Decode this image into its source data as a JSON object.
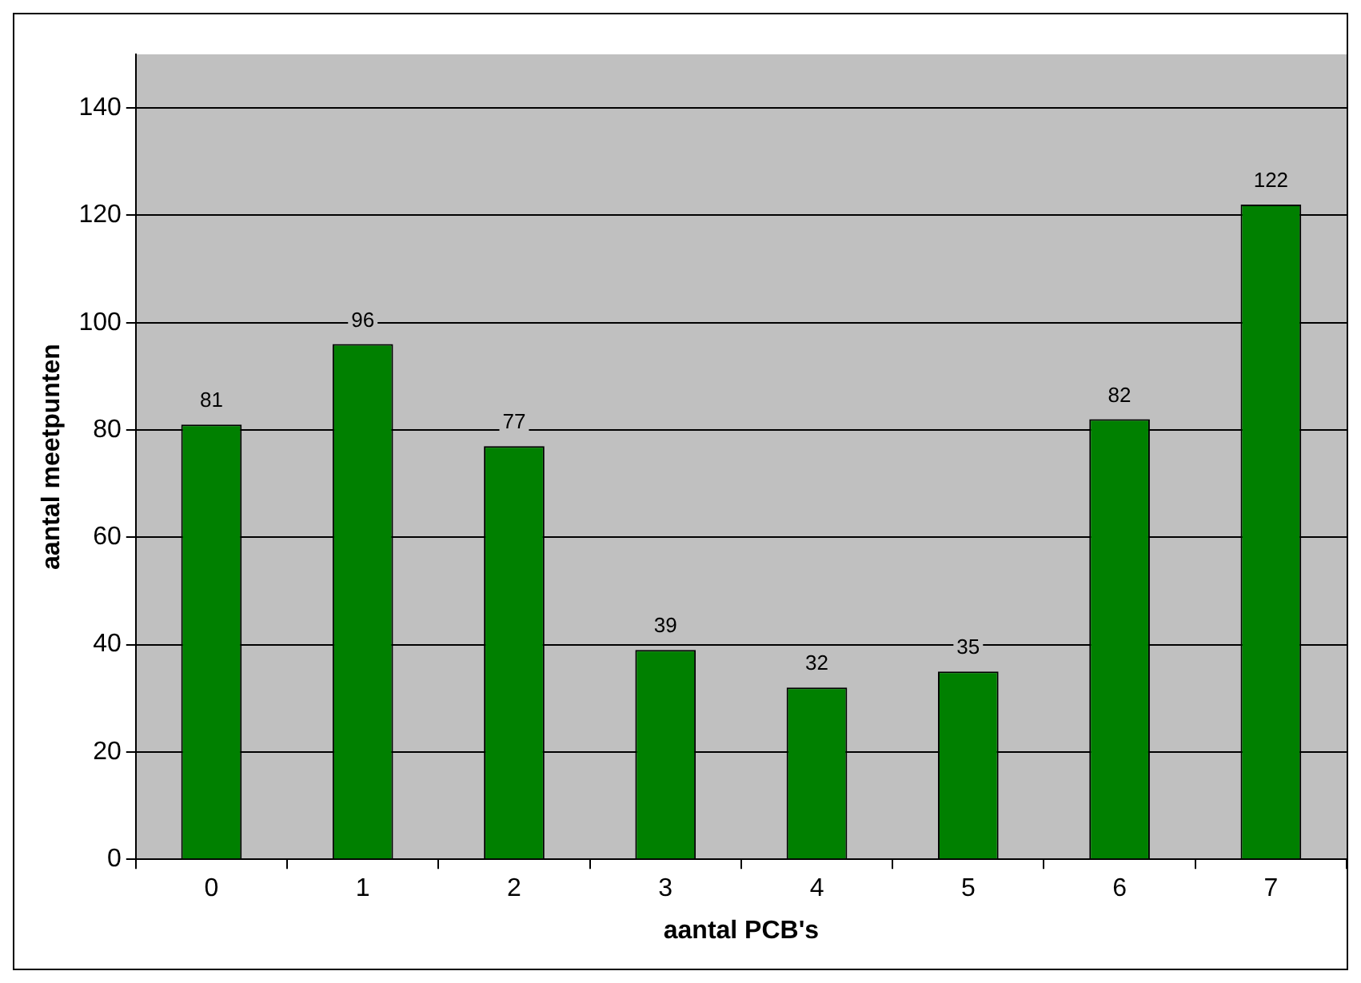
{
  "chart_data": {
    "type": "bar",
    "xlabel": "aantal PCB's",
    "ylabel": "aantal meetpunten",
    "categories": [
      "0",
      "1",
      "2",
      "3",
      "4",
      "5",
      "6",
      "7"
    ],
    "values": [
      81,
      96,
      77,
      39,
      32,
      35,
      82,
      122
    ],
    "color": "#008000",
    "ylim": [
      0,
      150
    ],
    "yticks": [
      0,
      20,
      40,
      60,
      80,
      100,
      120,
      140
    ],
    "grid": "y",
    "data_labels": true
  }
}
